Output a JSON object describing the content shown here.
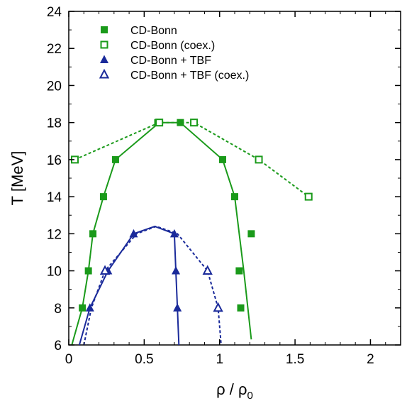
{
  "chart_data": {
    "type": "scatter",
    "xlabel": "ρ / ρ",
    "xlabel_sub": "0",
    "ylabel": "T [MeV]",
    "xlim": [
      0,
      2.2
    ],
    "ylim": [
      6,
      24
    ],
    "xticks": [
      "0",
      "0.5",
      "1",
      "1.5",
      "2"
    ],
    "xtick_values": [
      0,
      0.5,
      1,
      1.5,
      2
    ],
    "yticks": [
      "6",
      "8",
      "10",
      "12",
      "14",
      "16",
      "18",
      "20",
      "22",
      "24"
    ],
    "ytick_values": [
      6,
      8,
      10,
      12,
      14,
      16,
      18,
      20,
      22,
      24
    ],
    "grid": false,
    "legend_position": "top-left",
    "series": [
      {
        "name": "CD-Bonn",
        "marker": "filled-square",
        "color": "#1a9a1a",
        "points": [
          {
            "x": 0.09,
            "y": 8
          },
          {
            "x": 0.13,
            "y": 10
          },
          {
            "x": 0.16,
            "y": 12
          },
          {
            "x": 0.23,
            "y": 14
          },
          {
            "x": 0.31,
            "y": 16
          },
          {
            "x": 0.59,
            "y": 18
          },
          {
            "x": 0.74,
            "y": 18
          },
          {
            "x": 1.02,
            "y": 16
          },
          {
            "x": 1.1,
            "y": 14
          },
          {
            "x": 1.21,
            "y": 12
          },
          {
            "x": 1.13,
            "y": 10
          },
          {
            "x": 1.14,
            "y": 8
          }
        ]
      },
      {
        "name": "CD-Bonn (coex.)",
        "marker": "open-square",
        "color": "#1a9a1a",
        "points": [
          {
            "x": 0.04,
            "y": 16
          },
          {
            "x": 0.6,
            "y": 18
          },
          {
            "x": 0.83,
            "y": 18
          },
          {
            "x": 1.26,
            "y": 16
          },
          {
            "x": 1.59,
            "y": 14
          }
        ]
      },
      {
        "name": "CD-Bonn + TBF",
        "marker": "filled-triangle",
        "color": "#1a2a9a",
        "points": [
          {
            "x": 0.14,
            "y": 8
          },
          {
            "x": 0.26,
            "y": 10
          },
          {
            "x": 0.43,
            "y": 12
          },
          {
            "x": 0.7,
            "y": 12
          },
          {
            "x": 0.71,
            "y": 10
          },
          {
            "x": 0.72,
            "y": 8
          }
        ]
      },
      {
        "name": "CD-Bonn + TBF (coex.)",
        "marker": "open-triangle",
        "color": "#1a2a9a",
        "points": [
          {
            "x": 0.24,
            "y": 10
          },
          {
            "x": 0.92,
            "y": 10
          },
          {
            "x": 0.99,
            "y": 8
          }
        ]
      }
    ],
    "curves": [
      {
        "series": "CD-Bonn",
        "style": "solid",
        "color": "#1a9a1a",
        "points": [
          {
            "x": 0.02,
            "y": 6
          },
          {
            "x": 0.09,
            "y": 8
          },
          {
            "x": 0.13,
            "y": 10
          },
          {
            "x": 0.16,
            "y": 12
          },
          {
            "x": 0.23,
            "y": 14
          },
          {
            "x": 0.31,
            "y": 16
          },
          {
            "x": 0.6,
            "y": 18
          },
          {
            "x": 0.74,
            "y": 18
          },
          {
            "x": 1.02,
            "y": 16
          },
          {
            "x": 1.1,
            "y": 14
          },
          {
            "x": 1.16,
            "y": 10
          },
          {
            "x": 1.21,
            "y": 6.3
          }
        ]
      },
      {
        "series": "CD-Bonn (coex.)",
        "style": "dashed",
        "color": "#1a9a1a",
        "points": [
          {
            "x": 0.04,
            "y": 16
          },
          {
            "x": 0.6,
            "y": 18
          },
          {
            "x": 0.83,
            "y": 18
          },
          {
            "x": 1.26,
            "y": 16
          },
          {
            "x": 1.59,
            "y": 14
          }
        ]
      },
      {
        "series": "CD-Bonn + TBF",
        "style": "solid",
        "color": "#1a2a9a",
        "points": [
          {
            "x": 0.07,
            "y": 6
          },
          {
            "x": 0.14,
            "y": 8
          },
          {
            "x": 0.26,
            "y": 10
          },
          {
            "x": 0.43,
            "y": 12
          },
          {
            "x": 0.57,
            "y": 12.4
          },
          {
            "x": 0.7,
            "y": 12
          },
          {
            "x": 0.71,
            "y": 10
          },
          {
            "x": 0.72,
            "y": 8
          },
          {
            "x": 0.73,
            "y": 6
          }
        ]
      },
      {
        "series": "CD-Bonn + TBF (coex.)",
        "style": "dashed",
        "color": "#1a2a9a",
        "points": [
          {
            "x": 0.1,
            "y": 6
          },
          {
            "x": 0.15,
            "y": 8
          },
          {
            "x": 0.24,
            "y": 10
          },
          {
            "x": 0.45,
            "y": 12
          },
          {
            "x": 0.58,
            "y": 12.4
          },
          {
            "x": 0.72,
            "y": 12
          },
          {
            "x": 0.92,
            "y": 10
          },
          {
            "x": 0.99,
            "y": 8
          },
          {
            "x": 1.01,
            "y": 6
          }
        ]
      }
    ]
  }
}
